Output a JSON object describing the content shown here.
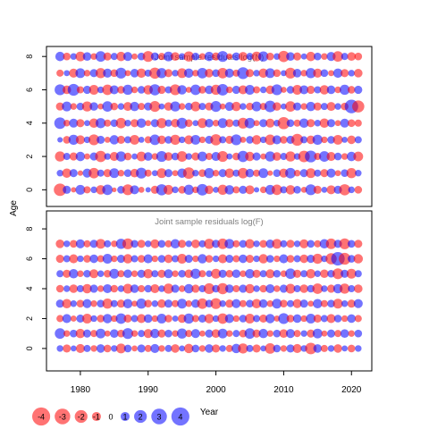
{
  "colors": {
    "positive": "#0000ff",
    "negative": "#ff0000",
    "frame": "#000000",
    "title": "#808080"
  },
  "common": {
    "ylabel": "Age",
    "xlabel": "Year"
  },
  "chart_data": [
    {
      "type": "scatter",
      "title": "Joint sample residuals log(N)",
      "xlim": [
        1975,
        2023
      ],
      "ylim": [
        -1,
        8.6
      ],
      "x_ticks": [
        1980,
        1990,
        2000,
        2010,
        2020
      ],
      "y_ticks": [
        0,
        2,
        4,
        6,
        8
      ],
      "years": [
        1977,
        2021
      ],
      "ages": [
        0,
        8
      ],
      "residuals": [
        [
          -2.1,
          0.9,
          -0.4,
          1.3,
          -0.7,
          0.6,
          -1.2,
          1.5,
          -0.3,
          0.8,
          -1.6,
          1.1,
          -0.5,
          0.4,
          -0.9,
          1.7,
          -1.3,
          0.6,
          -0.8,
          1.4,
          -0.6,
          1.8,
          -1.0,
          0.5,
          -1.4,
          1.2,
          -0.7,
          0.9,
          -1.1,
          0.4,
          -0.6,
          1.3,
          -1.5,
          0.7,
          -1.2,
          0.8,
          -0.5,
          1.6,
          -0.9,
          0.5,
          -1.1,
          0.9,
          -1.7,
          0.6,
          -0.8
        ],
        [
          0.6,
          -1.2,
          0.9,
          -0.4,
          1.1,
          -1.5,
          0.7,
          -0.9,
          1.3,
          -0.6,
          0.8,
          -1.0,
          1.6,
          -0.7,
          0.5,
          -1.3,
          0.9,
          -0.5,
          1.2,
          -1.8,
          0.6,
          -0.8,
          1.4,
          -0.6,
          0.9,
          -1.2,
          0.7,
          -1.5,
          1.0,
          -0.7,
          1.3,
          -0.4,
          0.8,
          -1.1,
          1.5,
          -0.6,
          0.9,
          -1.3,
          0.7,
          -0.9,
          1.1,
          -0.5,
          0.8,
          -1.4,
          0.6
        ],
        [
          -1.4,
          0.7,
          -0.9,
          1.2,
          -0.5,
          0.9,
          -1.7,
          0.6,
          -1.1,
          1.4,
          -0.8,
          0.5,
          -1.3,
          1.0,
          -0.6,
          1.6,
          -1.0,
          0.8,
          -1.5,
          0.6,
          -0.9,
          1.3,
          -0.7,
          1.1,
          -1.6,
          0.5,
          -0.8,
          1.7,
          -1.2,
          0.9,
          -0.5,
          1.4,
          -1.0,
          0.7,
          -1.4,
          0.6,
          -1.8,
          1.9,
          -0.7,
          1.5,
          -1.1,
          0.8,
          -0.6,
          1.2,
          -1.3
        ],
        [
          0.4,
          -0.8,
          1.4,
          -1.1,
          0.6,
          -1.6,
          0.9,
          -0.5,
          1.2,
          -0.9,
          0.7,
          -1.3,
          0.5,
          -0.7,
          1.5,
          -1.0,
          0.8,
          -1.4,
          0.6,
          -1.1,
          1.3,
          -0.6,
          0.9,
          -1.7,
          0.7,
          -0.9,
          1.6,
          -0.5,
          0.8,
          -1.2,
          0.6,
          -1.5,
          1.1,
          -0.8,
          0.9,
          -1.9,
          0.7,
          -1.0,
          1.4,
          -0.6,
          0.8,
          -1.3,
          0.5,
          -1.0,
          0.7
        ],
        [
          1.8,
          -0.6,
          1.1,
          -0.9,
          0.5,
          -1.2,
          1.4,
          -0.7,
          0.8,
          -1.5,
          0.6,
          -0.9,
          1.2,
          -0.5,
          0.9,
          -1.4,
          0.7,
          -1.0,
          1.6,
          -0.8,
          0.5,
          -1.3,
          1.0,
          -0.6,
          1.3,
          -0.9,
          0.7,
          -1.6,
          1.5,
          -0.5,
          0.9,
          -1.1,
          0.6,
          -2.0,
          0.8,
          -0.7,
          1.2,
          -0.9,
          0.6,
          -1.2,
          0.9,
          -0.5,
          1.1,
          -0.8,
          -0.7
        ],
        [
          -0.9,
          1.3,
          -0.6,
          0.8,
          -1.4,
          1.0,
          -0.5,
          1.5,
          -0.8,
          0.6,
          -1.1,
          1.2,
          -0.7,
          0.9,
          -1.6,
          0.5,
          -1.0,
          1.4,
          -0.6,
          0.8,
          -1.3,
          0.7,
          -0.9,
          1.6,
          -0.5,
          1.1,
          -1.2,
          0.6,
          -0.8,
          1.3,
          -0.7,
          1.8,
          -1.0,
          0.5,
          -1.5,
          0.9,
          -0.6,
          1.2,
          -0.9,
          0.7,
          -1.1,
          0.6,
          -0.8,
          2.5,
          -2.0
        ],
        [
          1.6,
          -1.0,
          1.9,
          -0.7,
          0.9,
          -1.3,
          0.6,
          -1.5,
          1.1,
          -0.8,
          1.4,
          -0.6,
          0.8,
          -1.2,
          1.7,
          -0.9,
          0.7,
          -1.6,
          1.2,
          -0.5,
          1.5,
          -0.8,
          1.0,
          -1.4,
          1.8,
          -0.6,
          0.9,
          -1.1,
          1.3,
          -0.7,
          0.6,
          -1.0,
          1.6,
          -0.5,
          0.8,
          -1.3,
          1.1,
          -0.9,
          0.7,
          -1.2,
          1.0,
          -0.6,
          1.4,
          -0.8,
          0.9
        ],
        [
          -0.7,
          0.5,
          -1.1,
          1.3,
          -0.6,
          0.9,
          -1.4,
          1.1,
          -0.8,
          1.6,
          -0.5,
          1.0,
          -1.2,
          0.7,
          -1.7,
          1.4,
          -0.9,
          0.6,
          -1.3,
          1.2,
          -0.6,
          1.5,
          -1.0,
          0.8,
          -1.5,
          1.1,
          -0.7,
          1.9,
          -0.9,
          0.6,
          -1.2,
          1.3,
          -0.8,
          0.5,
          -1.6,
          1.0,
          -0.6,
          1.4,
          -1.1,
          0.8,
          -0.5,
          1.2,
          -0.9,
          0.6,
          -1.0
        ],
        [
          1.2,
          -0.8,
          0.6,
          -1.3,
          1.0,
          -0.6,
          1.5,
          -0.9,
          0.7,
          -1.2,
          1.1,
          -0.5,
          0.8,
          -1.6,
          0.9,
          -0.7,
          1.3,
          -1.0,
          0.6,
          -1.4,
          0.8,
          -0.6,
          1.2,
          -0.9,
          1.6,
          -0.5,
          0.9,
          -1.1,
          0.7,
          -1.3,
          1.4,
          -0.8,
          0.6,
          -1.7,
          1.0,
          -0.9,
          0.5,
          -1.2,
          0.8,
          -0.6,
          1.1,
          -1.5,
          0.7,
          -1.0,
          -0.8
        ]
      ]
    },
    {
      "type": "scatter",
      "title": "Joint sample residuals log(F)",
      "xlim": [
        1975,
        2023
      ],
      "ylim": [
        -1.5,
        9.2
      ],
      "x_ticks": [
        1980,
        1990,
        2000,
        2010,
        2020
      ],
      "y_ticks": [
        0,
        2,
        4,
        6,
        8
      ],
      "years": [
        1977,
        2021
      ],
      "ages": [
        0,
        7
      ],
      "residuals": [
        [
          0.6,
          -0.9,
          0.5,
          -1.1,
          0.7,
          -0.6,
          1.0,
          -0.8,
          0.6,
          -1.3,
          0.8,
          -0.5,
          0.9,
          -0.7,
          1.1,
          -0.6,
          0.7,
          -1.0,
          0.5,
          -1.2,
          0.8,
          -0.6,
          1.0,
          -0.9,
          0.6,
          -0.7,
          1.2,
          -1.4,
          0.7,
          -0.9,
          0.5,
          -1.5,
          0.8,
          -0.6,
          0.9,
          -1.1,
          0.6,
          -1.8,
          1.0,
          -0.7,
          0.6,
          -1.0,
          0.5,
          -0.8,
          0.6
        ],
        [
          1.5,
          -0.6,
          0.8,
          -1.2,
          0.9,
          -0.7,
          1.3,
          -0.5,
          1.0,
          -0.8,
          1.6,
          -0.6,
          0.7,
          -1.1,
          1.2,
          -0.9,
          0.8,
          -0.6,
          1.4,
          -0.7,
          1.1,
          -0.5,
          0.9,
          -1.0,
          1.3,
          -0.6,
          0.7,
          -0.8,
          1.5,
          -0.9,
          1.2,
          -0.6,
          0.8,
          -1.0,
          1.1,
          -0.7,
          0.6,
          -0.9,
          1.3,
          -0.5,
          0.9,
          -0.7,
          1.0,
          -0.6,
          0.8
        ],
        [
          -0.7,
          1.1,
          -0.5,
          0.9,
          -1.3,
          0.6,
          -0.8,
          1.2,
          -0.6,
          1.5,
          -0.9,
          0.7,
          -1.1,
          1.0,
          -0.6,
          1.3,
          -0.8,
          0.5,
          -1.0,
          1.4,
          -0.7,
          0.9,
          -1.2,
          0.6,
          -1.5,
          1.1,
          -0.6,
          0.8,
          -1.3,
          0.7,
          -0.9,
          1.2,
          -0.5,
          1.6,
          -0.8,
          1.0,
          -0.6,
          1.3,
          -0.9,
          0.7,
          -1.1,
          0.8,
          -0.6,
          1.0,
          -0.7
        ],
        [
          0.9,
          -1.2,
          0.6,
          -0.8,
          1.1,
          -0.6,
          0.8,
          -1.4,
          0.7,
          -0.9,
          1.2,
          -0.5,
          1.4,
          -0.8,
          0.6,
          -1.0,
          0.9,
          -0.7,
          1.3,
          -0.6,
          1.0,
          -1.5,
          0.8,
          -1.6,
          0.6,
          -0.9,
          1.1,
          -0.7,
          0.8,
          -1.2,
          1.0,
          -0.6,
          1.3,
          -0.8,
          0.7,
          -1.1,
          0.9,
          -0.5,
          1.2,
          -0.7,
          0.8,
          -1.3,
          0.6,
          -0.9,
          1.1
        ],
        [
          -0.8,
          0.6,
          -1.0,
          0.7,
          -1.2,
          0.9,
          -0.6,
          1.1,
          -0.8,
          0.6,
          -1.3,
          1.0,
          -0.7,
          0.8,
          -1.1,
          0.6,
          -1.4,
          0.9,
          -0.6,
          1.2,
          -0.9,
          0.7,
          -1.6,
          0.8,
          -1.7,
          1.0,
          -0.7,
          0.9,
          -1.2,
          0.6,
          -0.8,
          1.1,
          -0.6,
          0.9,
          -1.3,
          0.7,
          -1.0,
          0.8,
          -1.5,
          0.6,
          -0.9,
          1.2,
          -1.4,
          0.7,
          -1.0
        ],
        [
          0.7,
          -0.9,
          1.2,
          -0.6,
          0.8,
          -1.1,
          0.6,
          -0.8,
          1.3,
          -0.7,
          1.0,
          -0.6,
          0.9,
          -1.2,
          0.7,
          -0.9,
          1.1,
          -0.6,
          0.8,
          -1.0,
          1.4,
          -0.7,
          0.6,
          -1.3,
          0.9,
          -0.8,
          1.0,
          -0.6,
          1.2,
          -0.9,
          0.7,
          -1.1,
          0.8,
          -0.6,
          1.5,
          -0.9,
          0.7,
          -1.2,
          0.6,
          -1.0,
          0.8,
          -1.6,
          0.9,
          -1.3,
          0.7
        ],
        [
          -0.9,
          0.7,
          -1.1,
          0.6,
          -0.8,
          1.0,
          -0.7,
          1.3,
          -0.6,
          0.9,
          -1.2,
          0.7,
          -0.8,
          1.1,
          -0.6,
          0.8,
          -1.0,
          0.7,
          -1.3,
          0.9,
          -0.6,
          1.2,
          -0.8,
          0.6,
          -1.1,
          0.9,
          -0.7,
          1.0,
          -0.9,
          0.6,
          -1.2,
          0.8,
          -0.6,
          1.1,
          -0.8,
          0.7,
          -1.0,
          0.9,
          -1.4,
          0.6,
          -1.7,
          2.5,
          -1.9,
          0.8,
          -1.2
        ],
        [
          -1.0,
          0.6,
          -0.8,
          1.1,
          -0.7,
          0.9,
          -1.3,
          0.7,
          -0.6,
          1.4,
          -1.6,
          0.8,
          -0.9,
          0.6,
          -1.1,
          0.8,
          -0.7,
          1.2,
          -0.9,
          0.6,
          -1.0,
          0.7,
          -1.4,
          0.9,
          -1.5,
          1.3,
          -0.7,
          0.8,
          -1.2,
          0.6,
          -0.8,
          1.0,
          -1.3,
          0.7,
          -0.9,
          0.6,
          -1.1,
          0.8,
          -0.7,
          1.2,
          -1.5,
          0.9,
          -1.6,
          0.8,
          -0.9
        ]
      ]
    }
  ],
  "legend": {
    "items": [
      {
        "label": "-4",
        "value": -4
      },
      {
        "label": "-3",
        "value": -3
      },
      {
        "label": "-2",
        "value": -2
      },
      {
        "label": "-1",
        "value": -1
      },
      {
        "label": "0",
        "value": 0
      },
      {
        "label": "1",
        "value": 1
      },
      {
        "label": "2",
        "value": 2
      },
      {
        "label": "3",
        "value": 3
      },
      {
        "label": "4",
        "value": 4
      }
    ]
  }
}
